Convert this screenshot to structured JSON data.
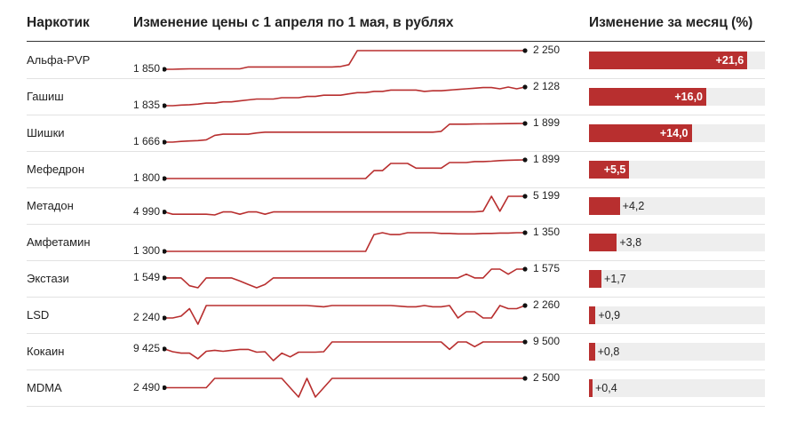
{
  "headers": {
    "drug": "Наркотик",
    "price_change": "Изменение цены с 1 апреля по 1 мая, в рублях",
    "monthly_change": "Изменение за месяц (%)"
  },
  "colors": {
    "line": "#b82f2f",
    "bar": "#b82f2f",
    "track": "#eeeeee",
    "dot": "#111111"
  },
  "chart_data": {
    "type": "table",
    "columns": [
      "Наркотик",
      "Изменение цены с 1 апреля по 1 мая, в рублях",
      "Изменение за месяц (%)"
    ],
    "bar_max_percent": 24,
    "rows": [
      {
        "name": "Альфа-PVP",
        "start_label": "1 850",
        "end_label": "2 250",
        "change_label": "+21,6",
        "change_pct": 21.6,
        "series": [
          1850,
          1850,
          1855,
          1860,
          1860,
          1860,
          1860,
          1860,
          1860,
          1860,
          1900,
          1900,
          1900,
          1900,
          1900,
          1900,
          1900,
          1900,
          1900,
          1900,
          1900,
          1910,
          1950,
          2250,
          2250,
          2250,
          2250,
          2250,
          2250,
          2250,
          2250,
          2250,
          2250,
          2250,
          2250,
          2250,
          2250,
          2250,
          2250,
          2250,
          2250,
          2250,
          2250,
          2250
        ]
      },
      {
        "name": "Гашиш",
        "start_label": "1 835",
        "end_label": "2 128",
        "change_label": "+16,0",
        "change_pct": 16.0,
        "series": [
          1835,
          1835,
          1845,
          1850,
          1860,
          1875,
          1875,
          1895,
          1895,
          1910,
          1925,
          1940,
          1940,
          1940,
          1960,
          1960,
          1960,
          1980,
          1980,
          2000,
          2000,
          2000,
          2020,
          2040,
          2040,
          2060,
          2060,
          2080,
          2080,
          2080,
          2080,
          2060,
          2070,
          2070,
          2080,
          2090,
          2100,
          2110,
          2120,
          2120,
          2100,
          2128,
          2100,
          2128
        ]
      },
      {
        "name": "Шишки",
        "start_label": "1 666",
        "end_label": "1 899",
        "change_label": "+14,0",
        "change_pct": 14.0,
        "series": [
          1666,
          1666,
          1675,
          1680,
          1685,
          1695,
          1750,
          1765,
          1765,
          1765,
          1765,
          1780,
          1790,
          1790,
          1790,
          1790,
          1790,
          1790,
          1790,
          1790,
          1790,
          1790,
          1790,
          1790,
          1790,
          1790,
          1790,
          1790,
          1790,
          1790,
          1790,
          1790,
          1790,
          1800,
          1890,
          1890,
          1890,
          1892,
          1893,
          1895,
          1896,
          1897,
          1898,
          1899
        ]
      },
      {
        "name": "Мефедрон",
        "start_label": "1 800",
        "end_label": "1 899",
        "change_label": "+5,5",
        "change_pct": 5.5,
        "series": [
          1800,
          1800,
          1800,
          1800,
          1800,
          1800,
          1800,
          1800,
          1800,
          1800,
          1800,
          1800,
          1800,
          1800,
          1800,
          1800,
          1800,
          1800,
          1800,
          1800,
          1800,
          1800,
          1800,
          1800,
          1800,
          1842,
          1842,
          1880,
          1880,
          1880,
          1855,
          1855,
          1855,
          1855,
          1885,
          1885,
          1885,
          1890,
          1890,
          1892,
          1895,
          1897,
          1898,
          1899
        ]
      },
      {
        "name": "Метадон",
        "start_label": "4 990",
        "end_label": "5 199",
        "change_label": "+4,2",
        "change_pct": 4.2,
        "series": [
          4990,
          4960,
          4960,
          4960,
          4960,
          4960,
          4950,
          4990,
          4990,
          4960,
          4990,
          4990,
          4960,
          4990,
          4990,
          4990,
          4990,
          4990,
          4990,
          4990,
          4990,
          4990,
          4990,
          4990,
          4990,
          4990,
          4990,
          4990,
          4990,
          4990,
          4990,
          4990,
          4990,
          4990,
          4990,
          4990,
          4990,
          4990,
          5000,
          5199,
          5000,
          5199,
          5199,
          5199
        ]
      },
      {
        "name": "Амфетамин",
        "start_label": "1 300",
        "end_label": "1 350",
        "change_label": "+3,8",
        "change_pct": 3.8,
        "series": [
          1300,
          1300,
          1300,
          1300,
          1300,
          1300,
          1300,
          1300,
          1300,
          1300,
          1300,
          1300,
          1300,
          1300,
          1300,
          1300,
          1300,
          1300,
          1300,
          1300,
          1300,
          1300,
          1300,
          1300,
          1300,
          1345,
          1350,
          1345,
          1345,
          1350,
          1350,
          1350,
          1350,
          1348,
          1348,
          1347,
          1347,
          1347,
          1348,
          1348,
          1349,
          1349,
          1350,
          1350
        ]
      },
      {
        "name": "Экстази",
        "start_label": "1 549",
        "end_label": "1 575",
        "change_label": "+1,7",
        "change_pct": 1.7,
        "series": [
          1549,
          1549,
          1549,
          1526,
          1520,
          1549,
          1549,
          1549,
          1549,
          1540,
          1530,
          1520,
          1530,
          1549,
          1549,
          1549,
          1549,
          1549,
          1549,
          1549,
          1549,
          1549,
          1549,
          1549,
          1549,
          1549,
          1549,
          1549,
          1549,
          1549,
          1549,
          1549,
          1549,
          1549,
          1549,
          1549,
          1560,
          1549,
          1549,
          1575,
          1575,
          1560,
          1575,
          1575
        ]
      },
      {
        "name": "LSD",
        "start_label": "2 240",
        "end_label": "2 260",
        "change_label": "+0,9",
        "change_pct": 0.9,
        "series": [
          2240,
          2240,
          2243,
          2255,
          2230,
          2260,
          2260,
          2260,
          2260,
          2260,
          2260,
          2260,
          2260,
          2260,
          2260,
          2260,
          2260,
          2260,
          2259,
          2258,
          2260,
          2260,
          2260,
          2260,
          2260,
          2260,
          2260,
          2260,
          2259,
          2258,
          2258,
          2260,
          2258,
          2258,
          2260,
          2240,
          2250,
          2250,
          2240,
          2240,
          2260,
          2255,
          2255,
          2260
        ]
      },
      {
        "name": "Кокаин",
        "start_label": "9 425",
        "end_label": "9 500",
        "change_label": "+0,8",
        "change_pct": 0.8,
        "series": [
          9425,
          9395,
          9380,
          9380,
          9320,
          9400,
          9410,
          9400,
          9410,
          9420,
          9420,
          9390,
          9395,
          9300,
          9380,
          9340,
          9390,
          9390,
          9390,
          9395,
          9500,
          9500,
          9500,
          9500,
          9500,
          9500,
          9500,
          9500,
          9500,
          9500,
          9500,
          9500,
          9500,
          9500,
          9420,
          9500,
          9500,
          9450,
          9500,
          9500,
          9500,
          9500,
          9500,
          9500
        ]
      },
      {
        "name": "MDMA",
        "start_label": "2 490",
        "end_label": "2 500",
        "change_label": "+0,4",
        "change_pct": 0.4,
        "series": [
          2490,
          2490,
          2490,
          2490,
          2490,
          2490,
          2500,
          2500,
          2500,
          2500,
          2500,
          2500,
          2500,
          2500,
          2500,
          2490,
          2480,
          2500,
          2480,
          2490,
          2500,
          2500,
          2500,
          2500,
          2500,
          2500,
          2500,
          2500,
          2500,
          2500,
          2500,
          2500,
          2500,
          2500,
          2500,
          2500,
          2500,
          2500,
          2500,
          2500,
          2500,
          2500,
          2500,
          2500
        ]
      }
    ]
  }
}
